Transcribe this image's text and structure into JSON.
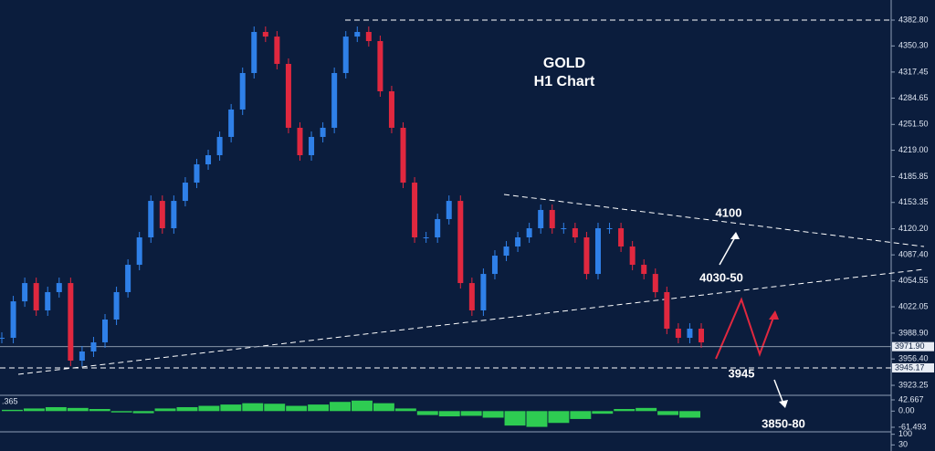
{
  "chart_data": [
    {
      "type": "candlestick",
      "title": "GOLD",
      "subtitle": "H1 Chart",
      "values": [
        3983.0,
        4028.9,
        4051.9,
        4017.5,
        4040.5,
        4051.9,
        3954.3,
        3965.8,
        3977.3,
        4006.0,
        4040.5,
        4074.9,
        4109.4,
        4155.3,
        4120.9,
        4155.3,
        4178.3,
        4201.3,
        4212.8,
        4235.8,
        4270.3,
        4316.2,
        4367.9,
        4362.1,
        4327.7,
        4247.3,
        4212.8,
        4235.8,
        4247.3,
        4316.2,
        4362.1,
        4367.9,
        4356.4,
        4293.2,
        4247.3,
        4178.3,
        4109.4,
        4109.4,
        4132.4,
        4155.3,
        4051.9,
        4017.5,
        4063.4,
        4086.4,
        4097.9,
        4109.4,
        4120.9,
        4143.9,
        4120.9,
        4120.9,
        4109.4,
        4063.4,
        4120.9,
        4120.9,
        4097.9,
        4074.9,
        4063.4,
        4040.5,
        3994.5,
        3983.0,
        3994.5,
        3977.3
      ],
      "up_color": "#2f80e8",
      "down_color": "#e0283f",
      "ylim": [
        3911.8,
        4408.1
      ],
      "yticks": [
        {
          "value": 4382.8,
          "label": "4382.80"
        },
        {
          "value": 4350.3,
          "label": "4350.30"
        },
        4317.45,
        4284.65,
        {
          "value": 4251.5,
          "label": "4251.50"
        },
        {
          "value": 4219,
          "label": "4219.00"
        },
        4185.85,
        4153.35,
        {
          "value": 4120.2,
          "label": "4120.20"
        },
        {
          "value": 4087.4,
          "label": "4087.40"
        },
        4054.55,
        4022.05,
        {
          "value": 3988.9,
          "label": "3988.90"
        },
        {
          "value": 3956.4,
          "label": "3956.40"
        },
        3923.25
      ],
      "price_lines": [
        {
          "value": 3971.9,
          "label": "3971.90"
        },
        3945.17
      ],
      "annotations": [
        "4100",
        "4030-50",
        "3945",
        "3850-80"
      ]
    },
    {
      "type": "bar",
      "label": ".365",
      "color": "#2ecc52",
      "values": [
        5,
        10,
        15,
        12,
        8,
        -5,
        -8,
        10,
        15,
        20,
        25,
        30,
        28,
        20,
        25,
        35,
        40,
        30,
        10,
        -15,
        -20,
        -18,
        -25,
        -55,
        -60,
        -45,
        -30,
        -10,
        8,
        12,
        -15,
        -25
      ],
      "ylim": [
        -75.4,
        56.6
      ],
      "yticks": [
        42.667,
        {
          "value": 0,
          "label": "0.00"
        },
        -61.493
      ]
    },
    {
      "type": "oscillator",
      "ylim": [
        -10,
        110
      ],
      "yticks": [
        100,
        30
      ]
    }
  ]
}
